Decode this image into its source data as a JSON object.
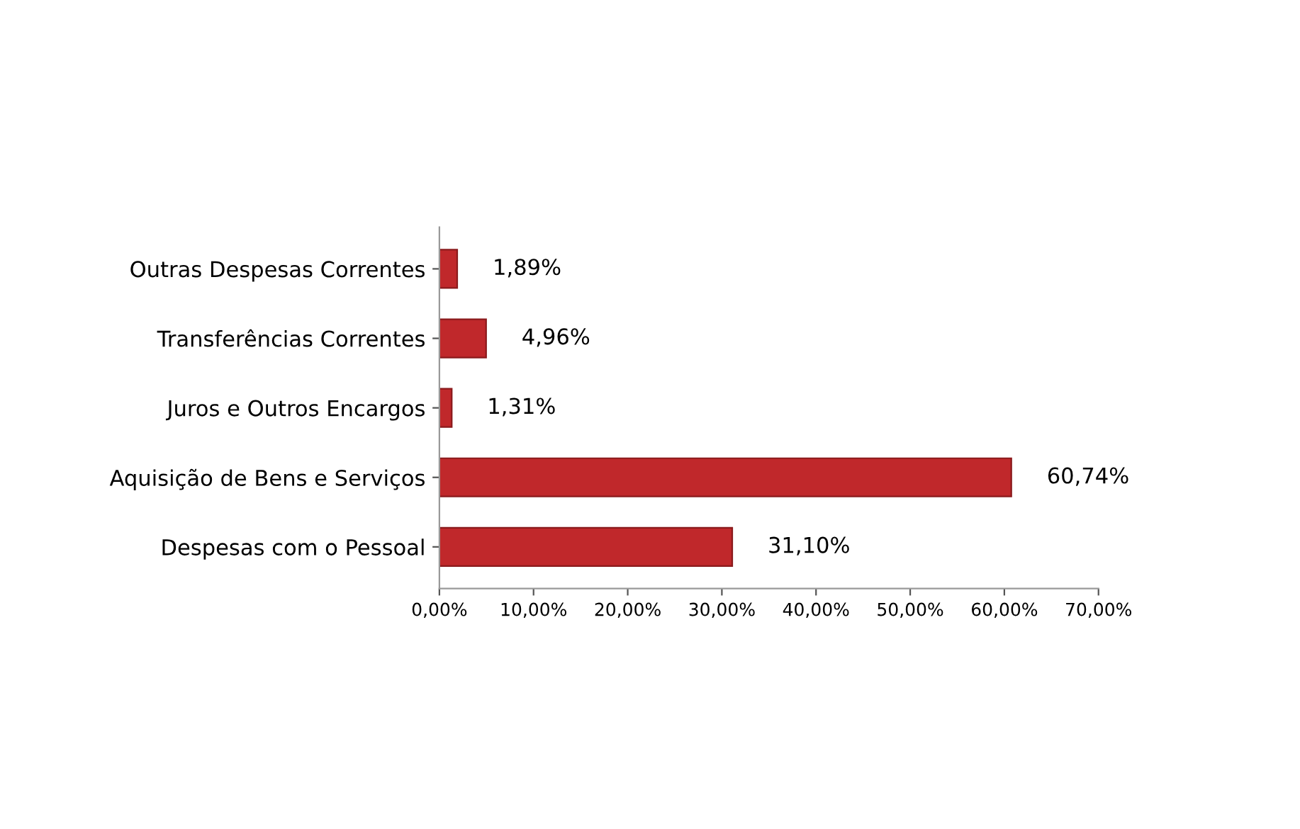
{
  "chart_data": {
    "type": "bar",
    "orientation": "horizontal",
    "categories": [
      "Outras Despesas Correntes",
      "Transferências Correntes",
      "Juros e Outros Encargos",
      "Aquisição de Bens e Serviços",
      "Despesas com o Pessoal"
    ],
    "values": [
      1.89,
      4.96,
      1.31,
      60.74,
      31.1
    ],
    "value_labels": [
      "1,89%",
      "4,96%",
      "1,31%",
      "60,74%",
      "31,10%"
    ],
    "color": "#c0282b",
    "xlim": [
      0,
      70
    ],
    "xticks": [
      {
        "value": 0,
        "label": "0,00%"
      },
      {
        "value": 10,
        "label": "10,00%"
      },
      {
        "value": 20,
        "label": "20,00%"
      },
      {
        "value": 30,
        "label": "30,00%"
      },
      {
        "value": 40,
        "label": "40,00%"
      },
      {
        "value": 50,
        "label": "50,00%"
      },
      {
        "value": 60,
        "label": "60,00%"
      },
      {
        "value": 70,
        "label": "70,00%"
      }
    ],
    "grid": false,
    "legend": false
  }
}
